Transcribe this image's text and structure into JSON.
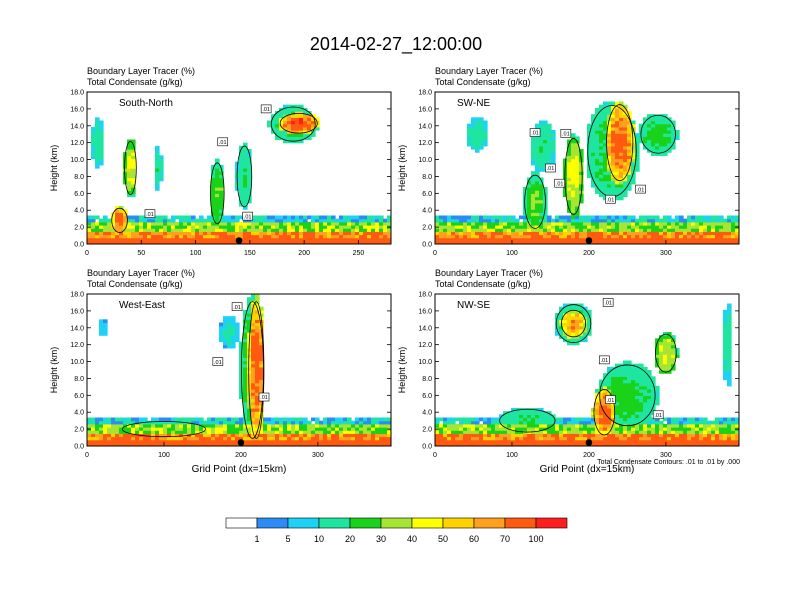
{
  "page_title": "2014-02-27_12:00:00",
  "colorbar": {
    "colors": [
      "#ffffff",
      "#2b8cf5",
      "#1ed2f5",
      "#1ee6a0",
      "#19d219",
      "#a6e632",
      "#ffff00",
      "#ffd200",
      "#ffa01e",
      "#ff5a0f",
      "#ff1e1e"
    ],
    "labels": [
      "1",
      "5",
      "10",
      "20",
      "30",
      "40",
      "50",
      "60",
      "70",
      "100"
    ]
  },
  "footnote": "Total Condensate Contours: .01 to .01 by .000",
  "chart_data": [
    {
      "type": "heatmap",
      "panel": "top-left",
      "title_line1": "Boundary Layer Tracer   (%)",
      "title_line2": "Total Condensate   (g/kg)",
      "section_label": "South-North",
      "ylabel": "Height (km)",
      "xlabel": "",
      "ylim": [
        0,
        18
      ],
      "xlim": [
        0,
        280
      ],
      "yticks": [
        "0.0",
        "2.0",
        "4.0",
        "6.0",
        "8.0",
        "10.0",
        "12.0",
        "14.0",
        "16.0",
        "18.0"
      ],
      "xticks": [
        0,
        50,
        100,
        150,
        200,
        250
      ],
      "marker_x": 140,
      "contour_labels": [
        {
          "x": 165,
          "y": 16.0,
          "text": ".01"
        },
        {
          "x": 125,
          "y": 12.1,
          "text": ".01"
        },
        {
          "x": 58,
          "y": 3.6,
          "text": ".01"
        },
        {
          "x": 148,
          "y": 3.3,
          "text": ".01"
        }
      ],
      "plumes": [
        {
          "x": 30,
          "y": 2.8,
          "w": 16,
          "h": 3.2,
          "v": 80
        },
        {
          "x": 40,
          "y": 9,
          "w": 12,
          "h": 7,
          "v": 45
        },
        {
          "x": 10,
          "y": 12,
          "w": 12,
          "h": 6,
          "v": 15
        },
        {
          "x": 65,
          "y": 9,
          "w": 8,
          "h": 5,
          "v": 18
        },
        {
          "x": 120,
          "y": 6,
          "w": 14,
          "h": 8,
          "v": 30
        },
        {
          "x": 145,
          "y": 8,
          "w": 15,
          "h": 8,
          "v": 20
        },
        {
          "x": 195,
          "y": 14.3,
          "w": 38,
          "h": 2.6,
          "v": 95
        },
        {
          "x": 190,
          "y": 14.2,
          "w": 45,
          "h": 4.5,
          "v": 25
        }
      ]
    },
    {
      "type": "heatmap",
      "panel": "top-right",
      "title_line1": "Boundary Layer Tracer   (%)",
      "title_line2": "Total Condensate   (g/kg)",
      "section_label": "SW-NE",
      "ylabel": "Height (km)",
      "xlabel": "",
      "ylim": [
        0,
        18
      ],
      "xlim": [
        0,
        395
      ],
      "yticks": [
        "0.0",
        "2.0",
        "4.0",
        "6.0",
        "8.0",
        "10.0",
        "12.0",
        "14.0",
        "16.0",
        "18.0"
      ],
      "xticks": [
        0,
        100,
        200,
        300
      ],
      "marker_x": 200,
      "contour_labels": [
        {
          "x": 130,
          "y": 13.2,
          "text": ".01"
        },
        {
          "x": 170,
          "y": 13.1,
          "text": ".01"
        },
        {
          "x": 150,
          "y": 9.0,
          "text": ".01"
        },
        {
          "x": 162,
          "y": 7.2,
          "text": ".01"
        },
        {
          "x": 228,
          "y": 5.3,
          "text": ".01"
        },
        {
          "x": 267,
          "y": 6.5,
          "text": ".01"
        }
      ],
      "plumes": [
        {
          "x": 240,
          "y": 12.0,
          "w": 38,
          "h": 10,
          "v": 85
        },
        {
          "x": 230,
          "y": 11,
          "w": 70,
          "h": 12,
          "v": 25
        },
        {
          "x": 290,
          "y": 13,
          "w": 50,
          "h": 5,
          "v": 25
        },
        {
          "x": 140,
          "y": 11.5,
          "w": 35,
          "h": 6,
          "v": 18
        },
        {
          "x": 55,
          "y": 13,
          "w": 30,
          "h": 4,
          "v": 15
        },
        {
          "x": 130,
          "y": 5,
          "w": 30,
          "h": 7,
          "v": 30
        },
        {
          "x": 180,
          "y": 8,
          "w": 25,
          "h": 10,
          "v": 45
        }
      ]
    },
    {
      "type": "heatmap",
      "panel": "bottom-left",
      "title_line1": "Boundary Layer Tracer   (%)",
      "title_line2": "Total Condensate   (g/kg)",
      "section_label": "West-East",
      "ylabel": "Height (km)",
      "xlabel": "Grid Point (dx=15km)",
      "ylim": [
        0,
        18
      ],
      "xlim": [
        0,
        395
      ],
      "yticks": [
        "0.0",
        "2.0",
        "4.0",
        "6.0",
        "8.0",
        "10.0",
        "12.0",
        "14.0",
        "16.0",
        "18.0"
      ],
      "xticks": [
        0,
        100,
        200,
        300
      ],
      "marker_x": 200,
      "contour_labels": [
        {
          "x": 195,
          "y": 16.5,
          "text": ".01"
        },
        {
          "x": 170,
          "y": 10.0,
          "text": ".01"
        },
        {
          "x": 230,
          "y": 5.8,
          "text": ".01"
        }
      ],
      "plumes": [
        {
          "x": 220,
          "y": 9.0,
          "w": 22,
          "h": 18,
          "v": 85
        },
        {
          "x": 215,
          "y": 9,
          "w": 32,
          "h": 18,
          "v": 30
        },
        {
          "x": 185,
          "y": 13.5,
          "w": 25,
          "h": 4,
          "v": 12
        },
        {
          "x": 20,
          "y": 14,
          "w": 12,
          "h": 2,
          "v": 10
        },
        {
          "x": 100,
          "y": 2,
          "w": 120,
          "h": 2,
          "v": 25
        }
      ]
    },
    {
      "type": "heatmap",
      "panel": "bottom-right",
      "title_line1": "Boundary Layer Tracer   (%)",
      "title_line2": "Total Condensate   (g/kg)",
      "section_label": "NW-SE",
      "ylabel": "Height (km)",
      "xlabel": "Grid Point (dx=15km)",
      "ylim": [
        0,
        18
      ],
      "xlim": [
        0,
        395
      ],
      "yticks": [
        "0.0",
        "2.0",
        "4.0",
        "6.0",
        "8.0",
        "10.0",
        "12.0",
        "14.0",
        "16.0",
        "18.0"
      ],
      "xticks": [
        0,
        100,
        200,
        300
      ],
      "marker_x": 200,
      "contour_labels": [
        {
          "x": 225,
          "y": 17.0,
          "text": ".01"
        },
        {
          "x": 220,
          "y": 10.2,
          "text": ".01"
        },
        {
          "x": 228,
          "y": 5.5,
          "text": ".01"
        },
        {
          "x": 290,
          "y": 3.7,
          "text": ".01"
        }
      ],
      "plumes": [
        {
          "x": 180,
          "y": 14.5,
          "w": 35,
          "h": 3.5,
          "v": 70
        },
        {
          "x": 180,
          "y": 14.5,
          "w": 50,
          "h": 5,
          "v": 20
        },
        {
          "x": 220,
          "y": 4,
          "w": 30,
          "h": 6,
          "v": 80
        },
        {
          "x": 250,
          "y": 6,
          "w": 80,
          "h": 8,
          "v": 25
        },
        {
          "x": 300,
          "y": 11,
          "w": 30,
          "h": 5,
          "v": 45
        },
        {
          "x": 120,
          "y": 3,
          "w": 80,
          "h": 3,
          "v": 20
        },
        {
          "x": 380,
          "y": 12,
          "w": 12,
          "h": 10,
          "v": 15
        }
      ]
    }
  ]
}
